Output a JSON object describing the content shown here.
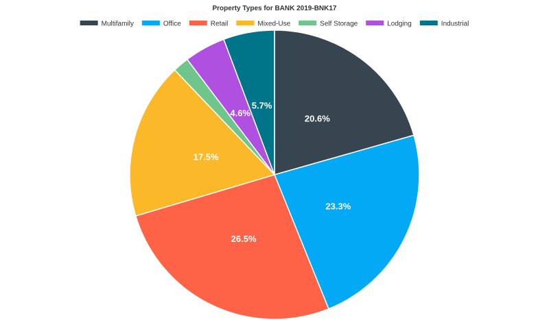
{
  "chart_data": {
    "type": "pie",
    "title": "Property Types for BANK 2019-BNK17",
    "legend_position": "top",
    "slices": [
      {
        "name": "Multifamily",
        "value": 20.6,
        "label": "20.6%",
        "color": "#36454f"
      },
      {
        "name": "Office",
        "value": 23.3,
        "label": "23.3%",
        "color": "#03a9f4"
      },
      {
        "name": "Retail",
        "value": 26.5,
        "label": "26.5%",
        "color": "#ff6347"
      },
      {
        "name": "Mixed-Use",
        "value": 17.5,
        "label": "17.5%",
        "color": "#fbb829"
      },
      {
        "name": "Self Storage",
        "value": 1.8,
        "label": "",
        "color": "#6fc68b"
      },
      {
        "name": "Lodging",
        "value": 4.6,
        "label": "4.6%",
        "color": "#b050e0"
      },
      {
        "name": "Industrial",
        "value": 5.7,
        "label": "5.7%",
        "color": "#00758a"
      }
    ]
  }
}
